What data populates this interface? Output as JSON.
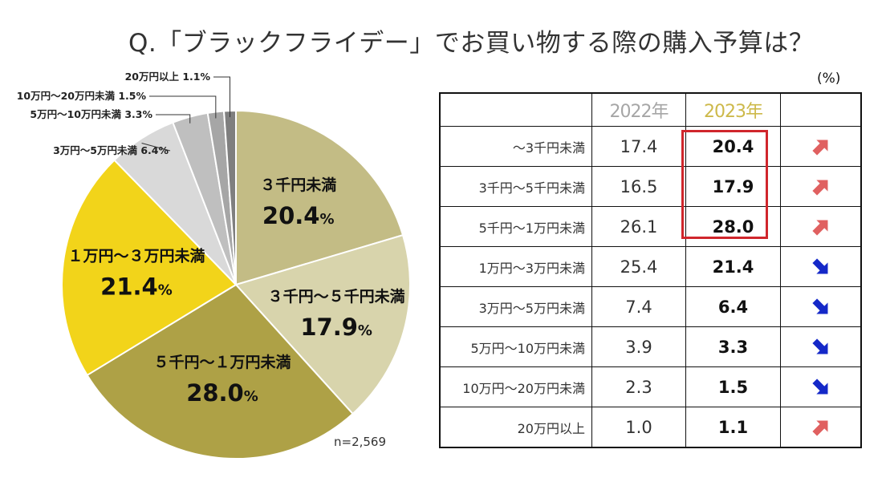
{
  "title": "Q.「ブラックフライデー」でお買い物する際の購入予算は？",
  "unit": "(%)",
  "sample": "n=2,569",
  "colors": {
    "slices": [
      "#c3bc85",
      "#d8d4ac",
      "#aea146",
      "#f2d41a",
      "#d9d9d9",
      "#bfbfbf",
      "#a6a6a6",
      "#7f7f7f"
    ],
    "up_arrow": "#e06060",
    "down_arrow": "#1428c8",
    "highlight_box": "#d0262c"
  },
  "chart_data": {
    "type": "pie",
    "title": "Q.「ブラックフライデー」でお買い物する際の購入予算は？",
    "labels": [
      "3千円未満",
      "3千円～5千円未満",
      "5千円～1万円未満",
      "1万円～3万円未満",
      "3万円～5万円未満",
      "5万円～10万円未満",
      "10万円～20万円未満",
      "20万円以上"
    ],
    "values": [
      20.4,
      17.9,
      28.0,
      21.4,
      6.4,
      3.3,
      1.5,
      1.1
    ],
    "inner_labels": [
      {
        "name": "３千円未満",
        "value": "20.4",
        "pct": "%"
      },
      {
        "name": "３千円～５千円未満",
        "value": "17.9",
        "pct": "%"
      },
      {
        "name": "５千円～１万円未満",
        "value": "28.0",
        "pct": "%"
      },
      {
        "name": "１万円～３万円未満",
        "value": "21.4",
        "pct": "%"
      }
    ],
    "callouts": [
      "3万円～5万円未満 6.4%",
      "5万円～10万円未満 3.3%",
      "10万円～20万円未満 1.5%",
      "20万円以上 1.1%"
    ]
  },
  "table": {
    "headers": {
      "year1": "2022年",
      "year2": "2023年"
    },
    "rows": [
      {
        "label": "～3千円未満",
        "y2022": "17.4",
        "y2023": "20.4",
        "trend": "up"
      },
      {
        "label": "3千円～5千円未満",
        "y2022": "16.5",
        "y2023": "17.9",
        "trend": "up"
      },
      {
        "label": "5千円～1万円未満",
        "y2022": "26.1",
        "y2023": "28.0",
        "trend": "up"
      },
      {
        "label": "1万円～3万円未満",
        "y2022": "25.4",
        "y2023": "21.4",
        "trend": "down"
      },
      {
        "label": "3万円～5万円未満",
        "y2022": "7.4",
        "y2023": "6.4",
        "trend": "down"
      },
      {
        "label": "5万円～10万円未満",
        "y2022": "3.9",
        "y2023": "3.3",
        "trend": "down"
      },
      {
        "label": "10万円～20万円未満",
        "y2022": "2.3",
        "y2023": "1.5",
        "trend": "down"
      },
      {
        "label": "20万円以上",
        "y2022": "1.0",
        "y2023": "1.1",
        "trend": "up"
      }
    ]
  }
}
